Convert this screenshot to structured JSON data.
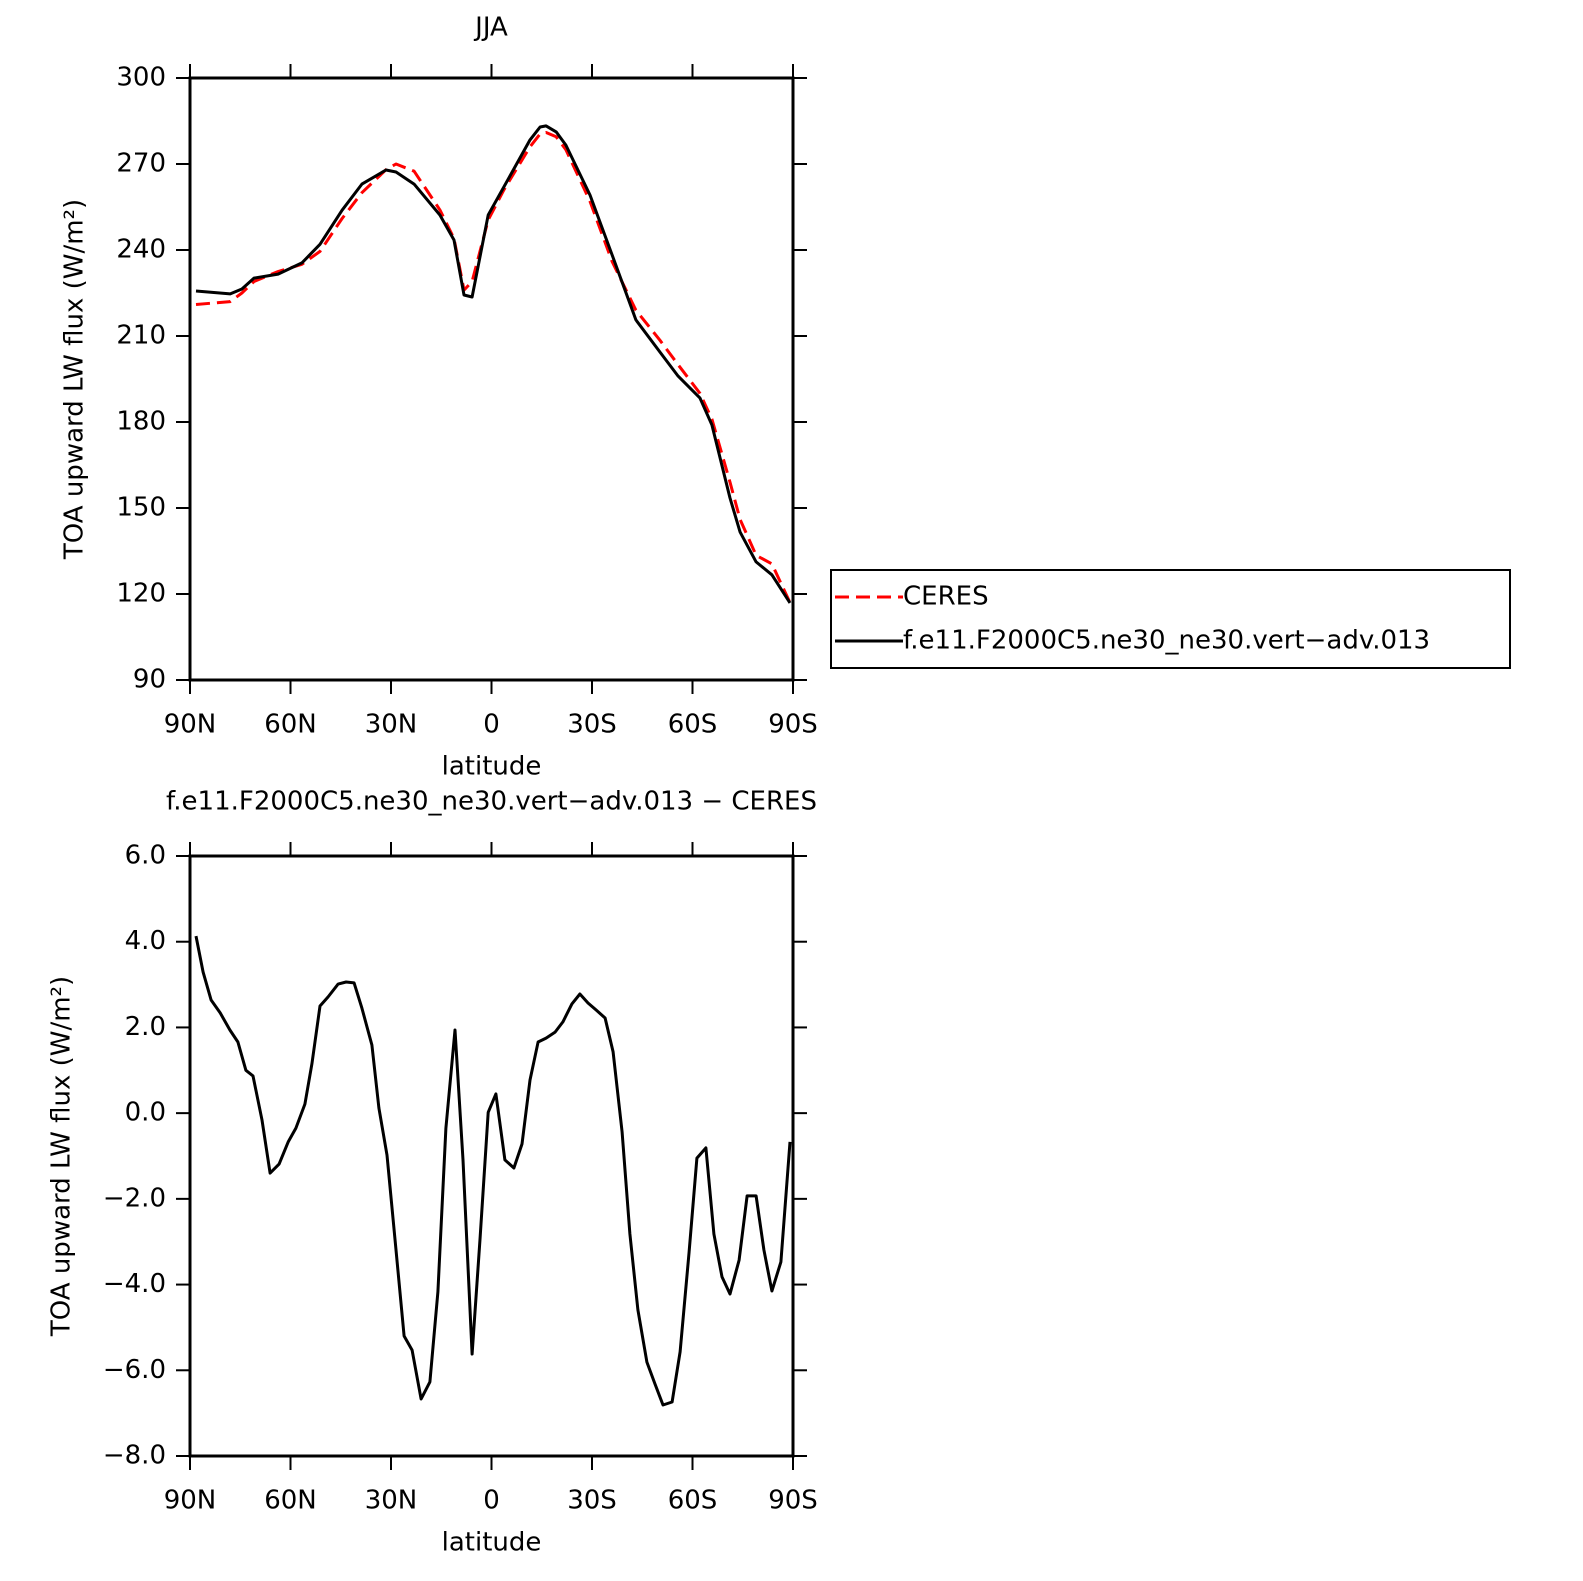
{
  "chart_data": [
    {
      "type": "line",
      "title": "JJA",
      "x_label": "latitude",
      "y_label": "TOA upward LW flux (W/m²)",
      "x": [
        88.2,
        78,
        74.5,
        70.9,
        63.7,
        56.6,
        51.2,
        44.6,
        38.7,
        31.5,
        28.5,
        23.1,
        15.4,
        11.2,
        8.2,
        5.8,
        1,
        -3.7,
        -11.5,
        -14.5,
        -16.3,
        -19.3,
        -22.2,
        -29.4,
        -36,
        -43.1,
        -50.3,
        -55.7,
        -62.2,
        -65.8,
        -71.2,
        -74.2,
        -79,
        -83.7,
        -89.1
      ],
      "series": [
        {
          "name": "CERES",
          "color": "#ff0000",
          "style": "dashed",
          "values": [
            221,
            222,
            225,
            229,
            232.5,
            235,
            239.5,
            251,
            260,
            268,
            270,
            267.5,
            254,
            244,
            226,
            229,
            250.5,
            261,
            276,
            280.5,
            281,
            279.5,
            275,
            257,
            236,
            219,
            208.5,
            200,
            190,
            181,
            159,
            146,
            133.5,
            130.5,
            117
          ]
        },
        {
          "name": "f.e11.F2000C5.ne30_ne30.vert−adv.013",
          "color": "#000000",
          "style": "solid",
          "values": [
            225.7,
            224.7,
            226.4,
            230.2,
            231.6,
            235.5,
            242,
            253.9,
            263,
            267.9,
            267.2,
            263,
            252.2,
            243.5,
            224.3,
            223.6,
            252.2,
            262,
            278.4,
            282.9,
            283.3,
            281.2,
            276.6,
            259.2,
            238.3,
            215.6,
            204.4,
            196,
            188.4,
            179,
            153.5,
            141.6,
            131.2,
            126.7,
            116.9
          ]
        }
      ],
      "xlim": [
        90,
        -90
      ],
      "xticks": [
        {
          "value": 90,
          "label": "90N"
        },
        {
          "value": 60,
          "label": "60N"
        },
        {
          "value": 30,
          "label": "30N"
        },
        0,
        {
          "value": -30,
          "label": "30S"
        },
        {
          "value": -60,
          "label": "60S"
        },
        {
          "value": -90,
          "label": "90S"
        }
      ],
      "ylim": [
        90,
        300
      ],
      "yticks": [
        90,
        120,
        150,
        180,
        210,
        240,
        270,
        300
      ],
      "legend": "outside-right"
    },
    {
      "type": "line",
      "title": "f.e11.F2000C5.ne30_ne30.vert−adv.013 − CERES",
      "x_label": "latitude",
      "y_label": "TOA upward LW flux (W/m²)",
      "x": [
        88.2,
        86.1,
        83.7,
        81,
        78.1,
        75.7,
        73.3,
        71.2,
        68.5,
        66.1,
        63.4,
        60.7,
        58.4,
        55.7,
        53.6,
        51.2,
        48.8,
        45.8,
        43.4,
        41,
        38.7,
        35.7,
        33.6,
        31.2,
        28.5,
        26.1,
        23.7,
        21,
        18.4,
        16,
        13.6,
        10.9,
        8.5,
        5.8,
        3.4,
        1,
        -1.3,
        -4,
        -6.7,
        -9.1,
        -11.5,
        -13.9,
        -16.3,
        -19,
        -21.3,
        -24,
        -26.4,
        -28.8,
        -31.2,
        -33.9,
        -36.3,
        -39,
        -41.3,
        -43.7,
        -46.4,
        -48.8,
        -51.2,
        -53.9,
        -56.3,
        -59,
        -61.3,
        -64,
        -66.4,
        -68.8,
        -71.2,
        -73.9,
        -76.3,
        -79,
        -81.3,
        -83.7,
        -86.4,
        -89.1
      ],
      "color": "#000000",
      "values": [
        4.13,
        3.29,
        2.64,
        2.34,
        1.94,
        1.66,
        1.0,
        0.87,
        -0.16,
        -1.4,
        -1.19,
        -0.67,
        -0.35,
        0.21,
        1.15,
        2.5,
        2.71,
        3.01,
        3.06,
        3.04,
        2.45,
        1.59,
        0.12,
        -0.98,
        -3.19,
        -5.2,
        -5.53,
        -6.67,
        -6.27,
        -4.17,
        -0.35,
        1.94,
        -1.09,
        -5.62,
        -2.91,
        0.02,
        0.45,
        -1.09,
        -1.28,
        -0.72,
        0.77,
        1.66,
        1.75,
        1.89,
        2.13,
        2.55,
        2.78,
        2.57,
        2.41,
        2.22,
        1.43,
        -0.44,
        -2.82,
        -4.59,
        -5.81,
        -6.32,
        -6.81,
        -6.74,
        -5.57,
        -3.24,
        -1.05,
        -0.81,
        -2.82,
        -3.82,
        -4.22,
        -3.43,
        -1.93,
        -1.93,
        -3.19,
        -4.15,
        -3.47,
        -0.67
      ],
      "xlim": [
        90,
        -90
      ],
      "xticks": [
        {
          "value": 90,
          "label": "90N"
        },
        {
          "value": 60,
          "label": "60N"
        },
        {
          "value": 30,
          "label": "30N"
        },
        0,
        {
          "value": -30,
          "label": "30S"
        },
        {
          "value": -60,
          "label": "60S"
        },
        {
          "value": -90,
          "label": "90S"
        }
      ],
      "ylim": [
        -8,
        6
      ],
      "yticks": [
        {
          "value": -8,
          "label": "−8.0"
        },
        {
          "value": -6,
          "label": "−6.0"
        },
        {
          "value": -4,
          "label": "−4.0"
        },
        {
          "value": -2,
          "label": "−2.0"
        },
        {
          "value": 0,
          "label": "0.0"
        },
        {
          "value": 2,
          "label": "2.0"
        },
        {
          "value": 4,
          "label": "4.0"
        },
        {
          "value": 6,
          "label": "6.0"
        }
      ]
    }
  ]
}
